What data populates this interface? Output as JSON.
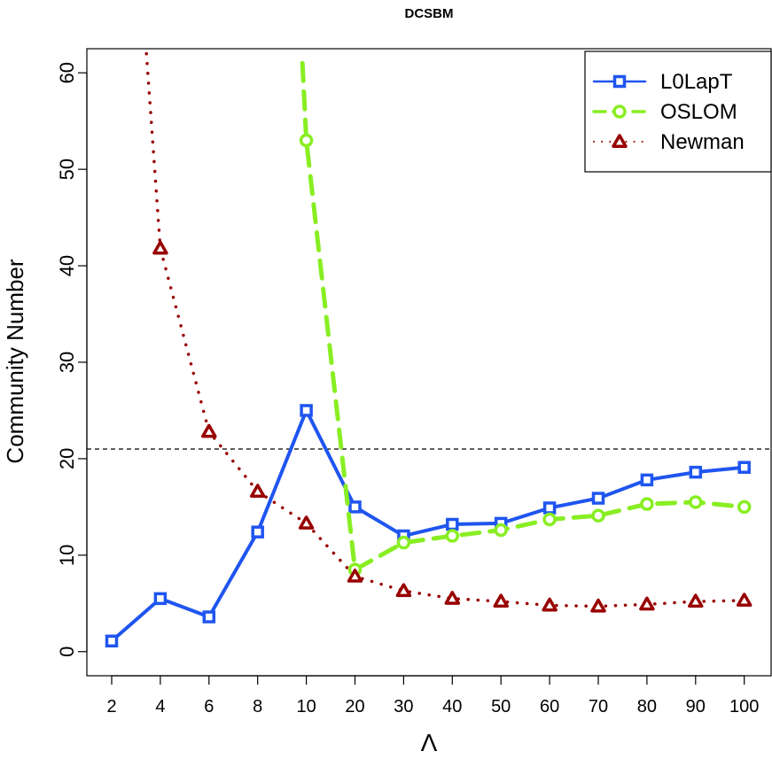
{
  "chart_data": {
    "type": "line",
    "title": "DCSBM",
    "xlabel": "Λ",
    "ylabel": "Community Number",
    "categories": [
      "2",
      "4",
      "6",
      "8",
      "10",
      "20",
      "30",
      "40",
      "50",
      "60",
      "70",
      "80",
      "90",
      "100"
    ],
    "ylim": [
      -2.5,
      62.5
    ],
    "yticks": [
      0,
      10,
      20,
      30,
      40,
      50,
      60
    ],
    "reference_line": {
      "y": 21,
      "style": "dashed",
      "color": "#000000"
    },
    "legend_position": "top-right",
    "series": [
      {
        "name": "L0LapT",
        "color": "#1f55f0",
        "marker": "square",
        "line": "solid",
        "values": [
          1.1,
          5.5,
          3.6,
          12.4,
          25.0,
          15.0,
          12.0,
          13.2,
          13.3,
          14.9,
          15.9,
          17.8,
          18.6,
          19.1
        ]
      },
      {
        "name": "OSLOM",
        "color": "#88ee22",
        "marker": "circle",
        "line": "dashed",
        "values": [
          null,
          null,
          null,
          null,
          53.0,
          8.5,
          11.3,
          12.0,
          12.6,
          13.7,
          14.1,
          15.3,
          15.5,
          15.0
        ],
        "offscale_start": {
          "from_index": 4,
          "y": 61,
          "x_shift": -0.08
        }
      },
      {
        "name": "Newman",
        "color": "#990000",
        "marker": "triangle",
        "line": "dotted",
        "values": [
          null,
          41.8,
          22.8,
          16.6,
          13.3,
          7.8,
          6.3,
          5.5,
          5.2,
          4.8,
          4.7,
          4.9,
          5.2,
          5.3
        ],
        "offscale_start": {
          "from_index": 1,
          "y": 63,
          "x_shift": -0.3
        }
      }
    ]
  }
}
